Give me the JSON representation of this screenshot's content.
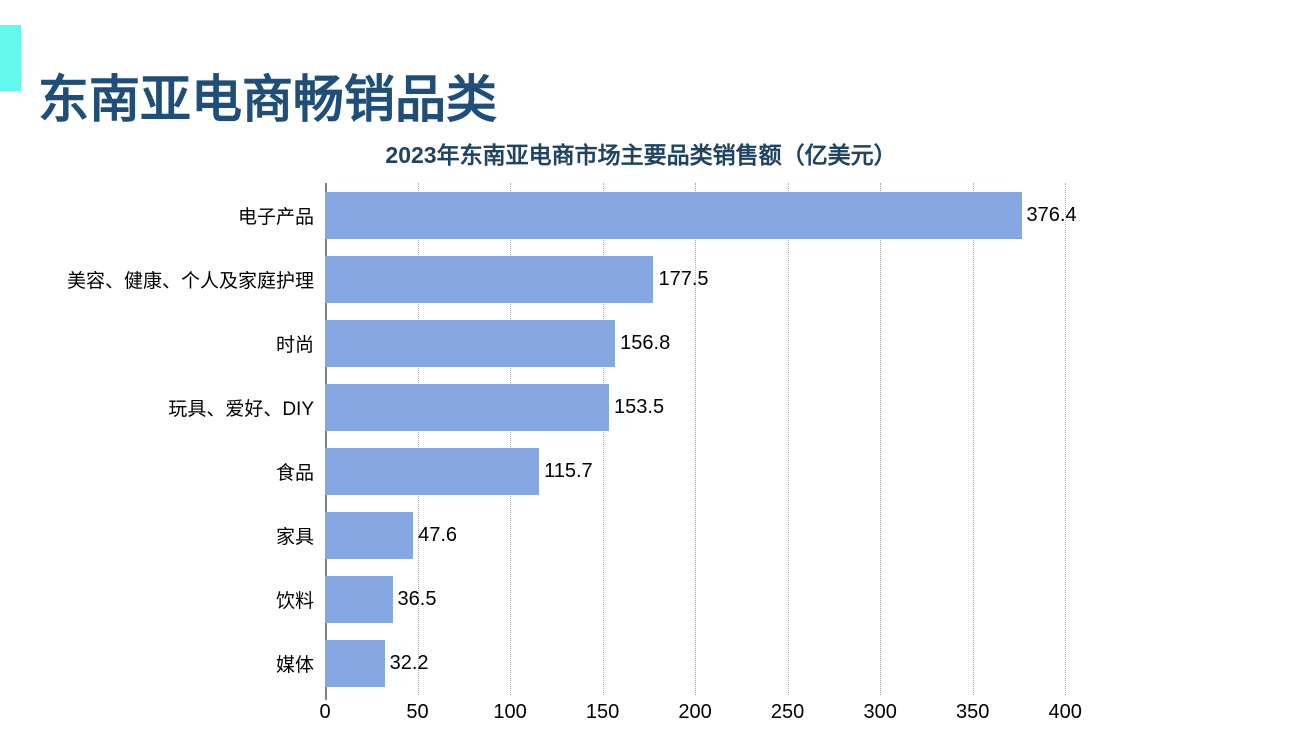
{
  "page": {
    "title": "东南亚电商畅销品类",
    "title_color": "#1F4E79",
    "accent_color": "#63F8EE",
    "background_color": "#FFFFFF"
  },
  "chart_data": {
    "type": "bar",
    "orientation": "horizontal",
    "title": "2023年东南亚电商市场主要品类销售额（亿美元）",
    "title_color": "#1F4361",
    "categories": [
      "电子产品",
      "美容、健康、个人及家庭护理",
      "时尚",
      "玩具、爱好、DIY",
      "食品",
      "家具",
      "饮料",
      "媒体"
    ],
    "values": [
      376.4,
      177.5,
      156.8,
      153.5,
      115.7,
      47.6,
      36.5,
      32.2
    ],
    "data_labels": [
      "376.4",
      "177.5",
      "156.8",
      "153.5",
      "115.7",
      "47.6",
      "36.5",
      "32.2"
    ],
    "xlabel": "",
    "ylabel": "",
    "xlim": [
      0,
      408
    ],
    "xticks": [
      0,
      50,
      100,
      150,
      200,
      250,
      300,
      350,
      400
    ],
    "grid": true,
    "legend": false,
    "bar_color": "#87A7E2",
    "axis_color": "#7F7F7F",
    "gridline_color": "#ADADAD",
    "label_color": "#000000"
  }
}
